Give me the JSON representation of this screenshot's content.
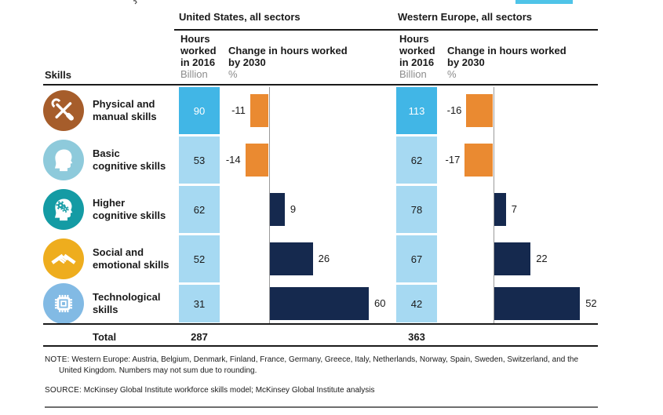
{
  "columns": {
    "us": {
      "title": "United States, all sectors",
      "hours_header": [
        "Hours",
        "worked",
        "in 2016"
      ],
      "hours_unit": "Billion",
      "change_header": [
        "Change in hours worked",
        "by 2030"
      ],
      "change_unit": "%"
    },
    "we": {
      "title": "Western Europe, all sectors",
      "hours_header": [
        "Hours",
        "worked",
        "in 2016"
      ],
      "hours_unit": "Billion",
      "change_header": [
        "Change in hours worked",
        "by 2030"
      ],
      "change_unit": "%"
    }
  },
  "skills_label": "Skills",
  "rows": [
    {
      "label_line1": "Physical and",
      "label_line2": "manual skills",
      "icon": "tools-icon",
      "icon_color": "#A65D2B",
      "highlight": true,
      "us_hours": 90,
      "us_change": -11,
      "we_hours": 113,
      "we_change": -16
    },
    {
      "label_line1": "Basic",
      "label_line2": "cognitive skills",
      "icon": "head-icon",
      "icon_color": "#8ECADB",
      "highlight": false,
      "us_hours": 53,
      "us_change": -14,
      "we_hours": 62,
      "we_change": -17
    },
    {
      "label_line1": "Higher",
      "label_line2": "cognitive skills",
      "icon": "head-gears-icon",
      "icon_color": "#149BA4",
      "highlight": false,
      "us_hours": 62,
      "us_change": 9,
      "we_hours": 78,
      "we_change": 7
    },
    {
      "label_line1": "Social and",
      "label_line2": "emotional skills",
      "icon": "handshake-icon",
      "icon_color": "#EEAD1E",
      "highlight": false,
      "us_hours": 52,
      "us_change": 26,
      "we_hours": 67,
      "we_change": 22
    },
    {
      "label_line1": "Technological",
      "label_line2": "skills",
      "icon": "chip-icon",
      "icon_color": "#82BAE4",
      "highlight": false,
      "us_hours": 31,
      "us_change": 60,
      "we_hours": 42,
      "we_change": 52
    }
  ],
  "total": {
    "label": "Total",
    "us": "287",
    "we": "363"
  },
  "notes": {
    "note_label": "NOTE:",
    "note_line1": "Western Europe: Austria, Belgium, Denmark, Finland, France, Germany, Greece, Italy, Netherlands, Norway, Spain, Sweden, Switzerland, and the",
    "note_line2": "United Kingdom. Numbers may not sum due to rounding.",
    "source_label": "SOURCE:",
    "source_text": "McKinsey Global Institute workforce skills model; McKinsey Global Institute analysis"
  },
  "colors": {
    "hours_highlight": "#41B6E6",
    "hours_normal": "#A6D9F2",
    "change_negative": "#EA8A31",
    "change_positive": "#15294E",
    "value_text_dark": "#1a1a1a",
    "value_text_light": "#ffffff",
    "top_chip": "#4FC4E8"
  },
  "chart_data": {
    "type": "bar",
    "categories": [
      "Physical and manual skills",
      "Basic cognitive skills",
      "Higher cognitive skills",
      "Social and emotional skills",
      "Technological skills"
    ],
    "series": [
      {
        "name": "United States hours worked in 2016 (billion)",
        "values": [
          90,
          53,
          62,
          52,
          31
        ]
      },
      {
        "name": "United States change in hours worked by 2030 (%)",
        "values": [
          -11,
          -14,
          9,
          26,
          60
        ]
      },
      {
        "name": "Western Europe hours worked in 2016 (billion)",
        "values": [
          113,
          62,
          78,
          67,
          42
        ]
      },
      {
        "name": "Western Europe change in hours worked by 2030 (%)",
        "values": [
          -16,
          -17,
          7,
          22,
          52
        ]
      }
    ],
    "totals": {
      "us_hours_billion": 287,
      "we_hours_billion": 363
    },
    "groups": [
      "United States, all sectors",
      "Western Europe, all sectors"
    ],
    "xlabel": "Skills",
    "ylabel": "",
    "legend": "none",
    "grid": "axis-only",
    "note": "Negative change bars plotted left of axis in orange; positive right of axis in navy"
  }
}
